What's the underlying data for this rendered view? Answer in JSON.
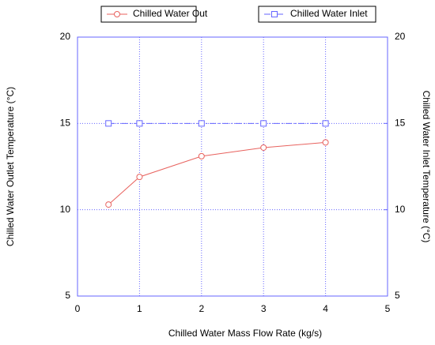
{
  "chart_data": {
    "type": "line",
    "x_label": "Chilled Water Mass Flow Rate (kg/s)",
    "y_label": "Chilled Water Outlet Temperature (°C)",
    "y2_label": "Chilled Water Inlet Temperature (°C)",
    "x": [
      0.5,
      1,
      2,
      3,
      4
    ],
    "series": [
      {
        "name": "Chilled Water Out",
        "color": "#e8625e",
        "marker": "circle",
        "values": [
          10.3,
          11.9,
          13.1,
          13.6,
          13.9
        ]
      },
      {
        "name": "Chilled Water Inlet",
        "color": "#6666ff",
        "marker": "square",
        "axis": "y2",
        "values": [
          15,
          15,
          15,
          15,
          15
        ]
      }
    ],
    "xlim": [
      0,
      5
    ],
    "xticks": [
      0,
      1,
      2,
      3,
      4,
      5
    ],
    "ylim": [
      5,
      20
    ],
    "yticks": [
      5,
      10,
      15,
      20
    ],
    "y2lim": [
      5,
      20
    ],
    "y2ticks": [
      5,
      10,
      15,
      20
    ],
    "grid": true
  }
}
